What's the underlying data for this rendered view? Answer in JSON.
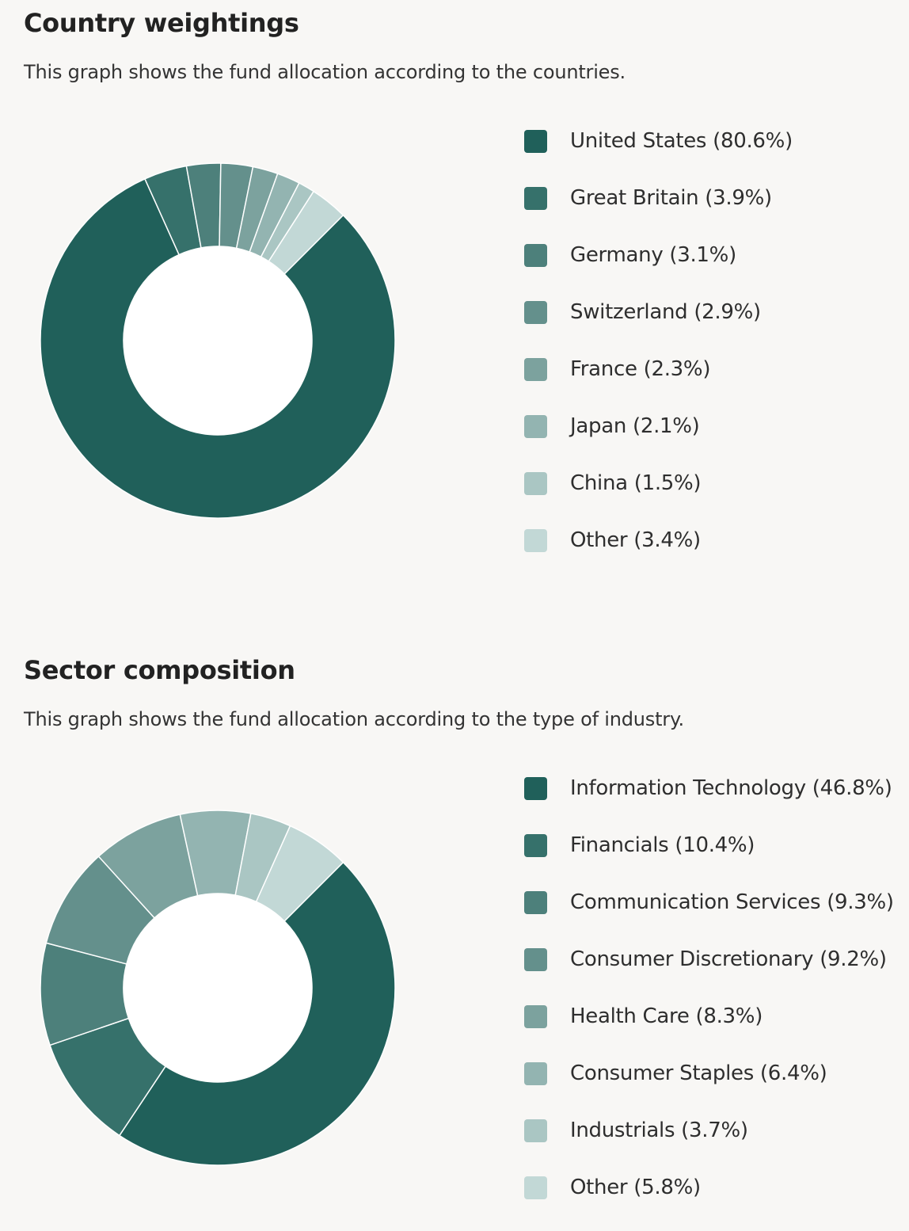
{
  "palette": [
    "#20605a",
    "#36716b",
    "#4d807b",
    "#64908c",
    "#7ca29e",
    "#93b4b1",
    "#aac6c3",
    "#c2d8d6"
  ],
  "chart_data": [
    {
      "type": "pie",
      "title": "Country weightings",
      "subtitle": "This graph shows the fund allocation according to the countries.",
      "categories": [
        "United States",
        "Great Britain",
        "Germany",
        "Switzerland",
        "France",
        "Japan",
        "China",
        "Other"
      ],
      "values": [
        80.6,
        3.9,
        3.1,
        2.9,
        2.3,
        2.1,
        1.5,
        3.4
      ],
      "legend_labels": [
        "United States (80.6%)",
        "Great Britain (3.9%)",
        "Germany (3.1%)",
        "Switzerland (2.9%)",
        "France (2.3%)",
        "Japan (2.1%)",
        "China (1.5%)",
        "Other (3.4%)"
      ],
      "legend_position": "right"
    },
    {
      "type": "pie",
      "title": "Sector composition",
      "subtitle": "This graph shows the fund allocation according to the type of industry.",
      "categories": [
        "Information Technology",
        "Financials",
        "Communication Services",
        "Consumer Discretionary",
        "Health Care",
        "Consumer Staples",
        "Industrials",
        "Other"
      ],
      "values": [
        46.8,
        10.4,
        9.3,
        9.2,
        8.3,
        6.4,
        3.7,
        5.8
      ],
      "legend_labels": [
        "Information Technology (46.8%)",
        "Financials (10.4%)",
        "Communication Services (9.3%)",
        "Consumer Discretionary (9.2%)",
        "Health Care (8.3%)",
        "Consumer Staples (6.4%)",
        "Industrials (3.7%)",
        "Other (5.8%)"
      ],
      "legend_position": "right"
    }
  ]
}
